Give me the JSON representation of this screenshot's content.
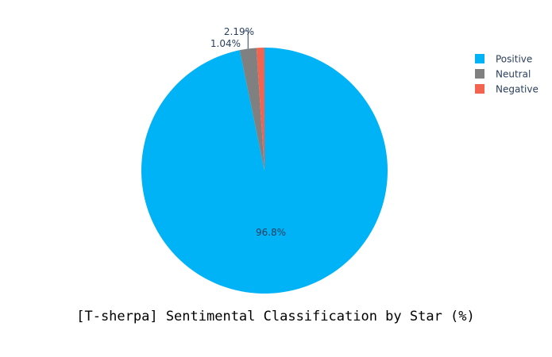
{
  "chart_data": {
    "type": "pie",
    "title": "[T-sherpa] Sentimental Classification by Star (%)",
    "labels": [
      "Positive",
      "Neutral",
      "Negative"
    ],
    "values": [
      96.8,
      2.19,
      1.04
    ],
    "value_labels": [
      "96.8%",
      "2.19%",
      "1.04%"
    ],
    "colors": [
      "#00b2f6",
      "#808080",
      "#f26450"
    ],
    "legend": {
      "placement": "top-right",
      "entries": [
        "Positive",
        "Neutral",
        "Negative"
      ]
    },
    "direction": "clockwise",
    "start_angle_deg": 90
  }
}
